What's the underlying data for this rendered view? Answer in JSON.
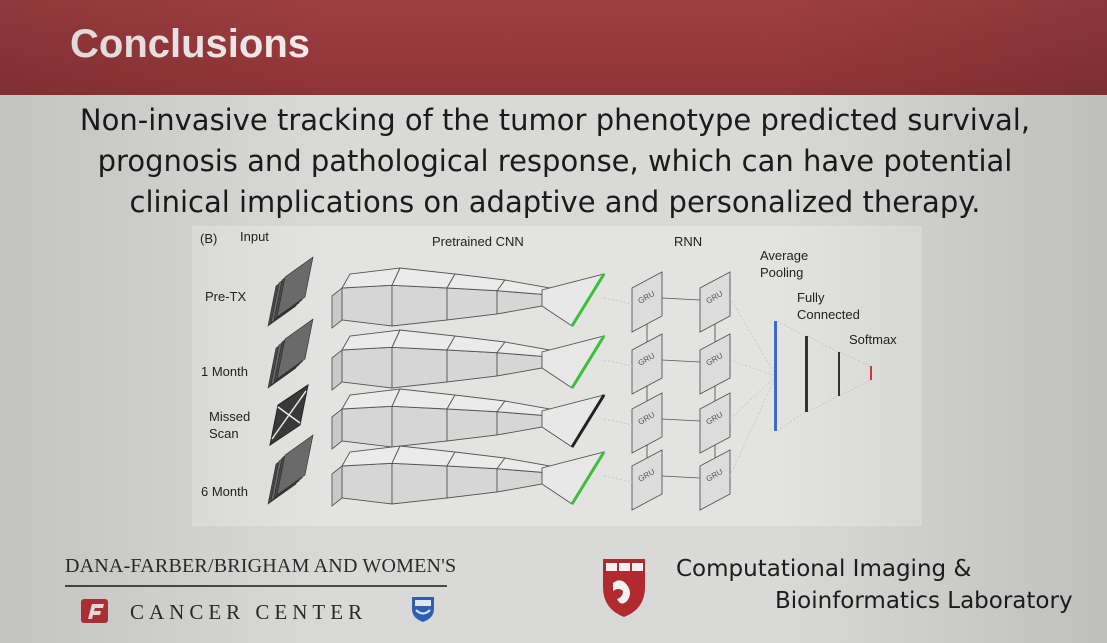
{
  "slide": {
    "title": "Conclusions",
    "subtitle_lines": [
      "Non-invasive tracking of the tumor phenotype predicted survival,",
      "prognosis and pathological response, which can have potential",
      "clinical implications on adaptive and personalized therapy."
    ]
  },
  "figure": {
    "panel_label": "(B)",
    "column_headers": {
      "input": "Input",
      "cnn": "Pretrained CNN",
      "rnn": "RNN"
    },
    "rows": [
      "Pre-TX",
      "1 Month",
      "Missed Scan",
      "6 Month"
    ],
    "stages": {
      "average_pooling": "Average Pooling",
      "fully_connected": "Fully Connected",
      "softmax": "Softmax"
    },
    "gru_label": "GRU",
    "colors": {
      "green": "#3bbf3b",
      "blue": "#3c6bc7",
      "red": "#d63a3a"
    }
  },
  "footer": {
    "left_line1": "DANA-FARBER/BRIGHAM AND WOMEN'S",
    "left_line2": "CANCER CENTER",
    "right_line1": "Computational Imaging &",
    "right_line2": "Bioinformatics Laboratory"
  }
}
